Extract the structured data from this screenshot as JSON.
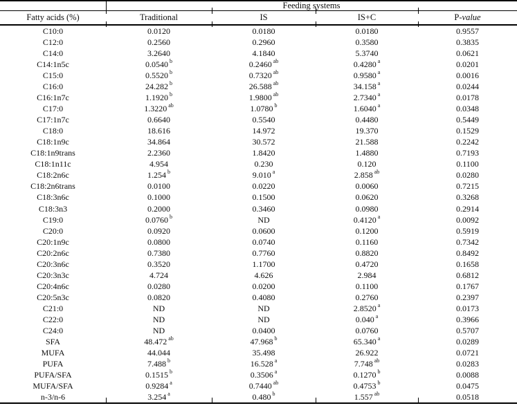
{
  "header": {
    "group_label": "Feeding systems",
    "columns": [
      "Fatty acids (%)",
      "Traditional",
      "IS",
      "IS+C"
    ],
    "p_column": {
      "prefix": "P-",
      "italic_part": "value"
    }
  },
  "table": {
    "rows": [
      {
        "fa": "C10:0",
        "cells": [
          [
            "0.0120",
            ""
          ],
          [
            "0.0180",
            ""
          ],
          [
            "0.0180",
            ""
          ],
          [
            "0.9557",
            ""
          ]
        ]
      },
      {
        "fa": "C12:0",
        "cells": [
          [
            "0.2560",
            ""
          ],
          [
            "0.2960",
            ""
          ],
          [
            "0.3580",
            ""
          ],
          [
            "0.3835",
            ""
          ]
        ]
      },
      {
        "fa": "C14:0",
        "cells": [
          [
            "3.2640",
            ""
          ],
          [
            "4.1840",
            ""
          ],
          [
            "5.3740",
            ""
          ],
          [
            "0.0621",
            ""
          ]
        ]
      },
      {
        "fa": "C14:1n5c",
        "cells": [
          [
            "0.0540",
            "b"
          ],
          [
            "0.2460",
            "ab"
          ],
          [
            "0.4280",
            "a"
          ],
          [
            "0.0201",
            ""
          ]
        ]
      },
      {
        "fa": "C15:0",
        "cells": [
          [
            "0.5520",
            "b"
          ],
          [
            "0.7320",
            "ab"
          ],
          [
            "0.9580",
            "a"
          ],
          [
            "0.0016",
            ""
          ]
        ]
      },
      {
        "fa": "C16:0",
        "cells": [
          [
            "24.282",
            "b"
          ],
          [
            "26.588",
            "ab"
          ],
          [
            "34.158",
            "a"
          ],
          [
            "0.0244",
            ""
          ]
        ]
      },
      {
        "fa": "C16:1n7c",
        "cells": [
          [
            "1.1920",
            "b"
          ],
          [
            "1.9800",
            "ab"
          ],
          [
            "2.7340",
            "a"
          ],
          [
            "0.0178",
            ""
          ]
        ]
      },
      {
        "fa": "C17:0",
        "cells": [
          [
            "1.3220",
            "ab"
          ],
          [
            "1.0780",
            "b"
          ],
          [
            "1.6040",
            "a"
          ],
          [
            "0.0348",
            ""
          ]
        ]
      },
      {
        "fa": "C17:1n7c",
        "cells": [
          [
            "0.6640",
            ""
          ],
          [
            "0.5540",
            ""
          ],
          [
            "0.4480",
            ""
          ],
          [
            "0.5449",
            ""
          ]
        ]
      },
      {
        "fa": "C18:0",
        "cells": [
          [
            "18.616",
            ""
          ],
          [
            "14.972",
            ""
          ],
          [
            "19.370",
            ""
          ],
          [
            "0.1529",
            ""
          ]
        ]
      },
      {
        "fa": "C18:1n9c",
        "cells": [
          [
            "34.864",
            ""
          ],
          [
            "30.572",
            ""
          ],
          [
            "21.588",
            ""
          ],
          [
            "0.2242",
            ""
          ]
        ]
      },
      {
        "fa": "C18:1n9trans",
        "cells": [
          [
            "2.2360",
            ""
          ],
          [
            "1.8420",
            ""
          ],
          [
            "1.4880",
            ""
          ],
          [
            "0.7193",
            ""
          ]
        ]
      },
      {
        "fa": "C18:1n11c",
        "cells": [
          [
            "4.954",
            ""
          ],
          [
            "0.230",
            ""
          ],
          [
            "0.120",
            ""
          ],
          [
            "0.1100",
            ""
          ]
        ]
      },
      {
        "fa": "C18:2n6c",
        "cells": [
          [
            "1.254",
            "b"
          ],
          [
            "9.010",
            "a"
          ],
          [
            "2.858",
            "ab"
          ],
          [
            "0.0280",
            ""
          ]
        ]
      },
      {
        "fa": "C18:2n6trans",
        "cells": [
          [
            "0.0100",
            ""
          ],
          [
            "0.0220",
            ""
          ],
          [
            "0.0060",
            ""
          ],
          [
            "0.7215",
            ""
          ]
        ]
      },
      {
        "fa": "C18:3n6c",
        "cells": [
          [
            "0.1000",
            ""
          ],
          [
            "0.1500",
            ""
          ],
          [
            "0.0620",
            ""
          ],
          [
            "0.3268",
            ""
          ]
        ]
      },
      {
        "fa": "C18:3n3",
        "cells": [
          [
            "0.2000",
            ""
          ],
          [
            "0.3460",
            ""
          ],
          [
            "0.0980",
            ""
          ],
          [
            "0.2914",
            ""
          ]
        ]
      },
      {
        "fa": "C19:0",
        "cells": [
          [
            "0.0760",
            "b"
          ],
          [
            "ND",
            ""
          ],
          [
            "0.4120",
            "a"
          ],
          [
            "0.0092",
            ""
          ]
        ]
      },
      {
        "fa": "C20:0",
        "cells": [
          [
            "0.0920",
            ""
          ],
          [
            "0.0600",
            ""
          ],
          [
            "0.1200",
            ""
          ],
          [
            "0.5919",
            ""
          ]
        ]
      },
      {
        "fa": "C20:1n9c",
        "cells": [
          [
            "0.0800",
            ""
          ],
          [
            "0.0740",
            ""
          ],
          [
            "0.1160",
            ""
          ],
          [
            "0.7342",
            ""
          ]
        ]
      },
      {
        "fa": "C20:2n6c",
        "cells": [
          [
            "0.7380",
            ""
          ],
          [
            "0.7760",
            ""
          ],
          [
            "0.8820",
            ""
          ],
          [
            "0.8492",
            ""
          ]
        ]
      },
      {
        "fa": "C20:3n6c",
        "cells": [
          [
            "0.3520",
            ""
          ],
          [
            "1.1700",
            ""
          ],
          [
            "0.4720",
            ""
          ],
          [
            "0.1658",
            ""
          ]
        ]
      },
      {
        "fa": "C20:3n3c",
        "cells": [
          [
            "4.724",
            ""
          ],
          [
            "4.626",
            ""
          ],
          [
            "2.984",
            ""
          ],
          [
            "0.6812",
            ""
          ]
        ]
      },
      {
        "fa": "C20:4n6c",
        "cells": [
          [
            "0.0280",
            ""
          ],
          [
            "0.0200",
            ""
          ],
          [
            "0.1100",
            ""
          ],
          [
            "0.1767",
            ""
          ]
        ]
      },
      {
        "fa": "C20:5n3c",
        "cells": [
          [
            "0.0820",
            ""
          ],
          [
            "0.4080",
            ""
          ],
          [
            "0.2760",
            ""
          ],
          [
            "0.2397",
            ""
          ]
        ]
      },
      {
        "fa": "C21:0",
        "cells": [
          [
            "ND",
            ""
          ],
          [
            "ND",
            ""
          ],
          [
            "2.8520",
            "a"
          ],
          [
            "0.0173",
            ""
          ]
        ]
      },
      {
        "fa": "C22:0",
        "cells": [
          [
            "ND",
            ""
          ],
          [
            "ND",
            ""
          ],
          [
            "0.040",
            "a"
          ],
          [
            "0.3966",
            ""
          ]
        ]
      },
      {
        "fa": "C24:0",
        "cells": [
          [
            "ND",
            ""
          ],
          [
            "0.0400",
            ""
          ],
          [
            "0.0760",
            ""
          ],
          [
            "0.5707",
            ""
          ]
        ]
      },
      {
        "fa": "SFA",
        "cells": [
          [
            "48.472",
            "ab"
          ],
          [
            "47.968",
            "b"
          ],
          [
            "65.340",
            "a"
          ],
          [
            "0.0289",
            ""
          ]
        ]
      },
      {
        "fa": "MUFA",
        "cells": [
          [
            "44.044",
            ""
          ],
          [
            "35.498",
            ""
          ],
          [
            "26.922",
            ""
          ],
          [
            "0.0721",
            ""
          ]
        ]
      },
      {
        "fa": "PUFA",
        "cells": [
          [
            "7.488",
            "b"
          ],
          [
            "16.528",
            "a"
          ],
          [
            "7.748",
            "ab"
          ],
          [
            "0.0283",
            ""
          ]
        ]
      },
      {
        "fa": "PUFA/SFA",
        "cells": [
          [
            "0.1515",
            "b"
          ],
          [
            "0.3506",
            "a"
          ],
          [
            "0.1270",
            "b"
          ],
          [
            "0.0088",
            ""
          ]
        ]
      },
      {
        "fa": "MUFA/SFA",
        "cells": [
          [
            "0.9284",
            "a"
          ],
          [
            "0.7440",
            "ab"
          ],
          [
            "0.4753",
            "b"
          ],
          [
            "0.0475",
            ""
          ]
        ]
      },
      {
        "fa": "n-3/n-6",
        "cells": [
          [
            "3.254",
            "a"
          ],
          [
            "0.480",
            "b"
          ],
          [
            "1.557",
            "ab"
          ],
          [
            "0.0518",
            ""
          ]
        ]
      }
    ]
  }
}
